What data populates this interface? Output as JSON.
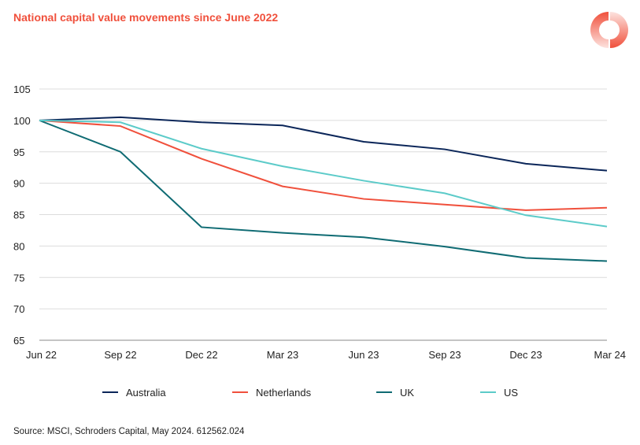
{
  "chart_data": {
    "type": "line",
    "title": "National capital value movements since June 2022",
    "categories": [
      "Jun 22",
      "Sep 22",
      "Dec 22",
      "Mar 23",
      "Jun 23",
      "Sep 23",
      "Dec 23",
      "Mar 24"
    ],
    "ylim": [
      65,
      105
    ],
    "yticks": [
      65,
      70,
      75,
      80,
      85,
      90,
      95,
      100,
      105
    ],
    "grid": true,
    "legend_position": "bottom",
    "series": [
      {
        "name": "Australia",
        "color": "#0b2659",
        "values": [
          100,
          100.5,
          99.7,
          99.2,
          96.6,
          95.4,
          93.1,
          92.0
        ]
      },
      {
        "name": "Netherlands",
        "color": "#f0503c",
        "values": [
          100,
          99.1,
          93.9,
          89.5,
          87.5,
          86.6,
          85.7,
          86.1
        ]
      },
      {
        "name": "UK",
        "color": "#0f6b73",
        "values": [
          100,
          95.0,
          83.0,
          82.1,
          81.4,
          79.9,
          78.1,
          77.6
        ]
      },
      {
        "name": "US",
        "color": "#5ccbc9",
        "values": [
          100,
          99.7,
          95.5,
          92.7,
          90.4,
          88.4,
          84.9,
          83.1
        ]
      }
    ]
  },
  "source": "Source: MSCI, Schroders Capital, May 2024. 612562.024"
}
